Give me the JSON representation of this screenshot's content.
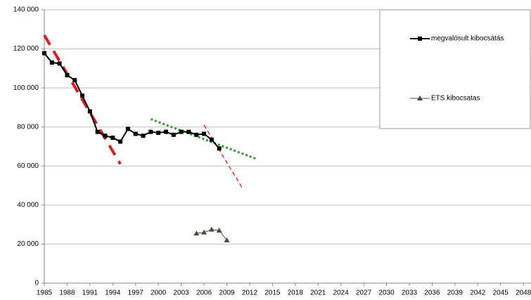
{
  "chart_data": {
    "type": "line",
    "xlim": [
      1985,
      2049
    ],
    "xticks": [
      1985,
      1988,
      1991,
      1994,
      1997,
      2000,
      2003,
      2006,
      2009,
      2012,
      2015,
      2018,
      2021,
      2024,
      2027,
      2030,
      2033,
      2036,
      2039,
      2042,
      2045,
      2048
    ],
    "ylim": [
      0,
      140000
    ],
    "yticks": [
      0,
      {
        "value": 20000,
        "label": "20 000"
      },
      {
        "value": 40000,
        "label": "40 000"
      },
      {
        "value": 60000,
        "label": "60 000"
      },
      {
        "value": 80000,
        "label": "80 000"
      },
      {
        "value": 100000,
        "label": "100 000"
      },
      {
        "value": 120000,
        "label": "120 000"
      },
      {
        "value": 140000,
        "label": "140 000"
      }
    ],
    "grid": true,
    "legend": "upper right",
    "series": [
      {
        "name": "megvalósult kibocsátás",
        "color": "#000000",
        "marker": "square",
        "x": [
          1985,
          1986,
          1987,
          1988,
          1989,
          1990,
          1991,
          1992,
          1993,
          1994,
          1995,
          1996,
          1997,
          1998,
          1999,
          2000,
          2001,
          2002,
          2003,
          2004,
          2005,
          2006,
          2007,
          2008
        ],
        "values": [
          117800,
          113000,
          112500,
          106500,
          104000,
          96000,
          88000,
          77500,
          75500,
          74500,
          72500,
          79000,
          76500,
          75500,
          77500,
          77000,
          77500,
          76000,
          77500,
          77500,
          76000,
          76500,
          73500,
          69000
        ]
      },
      {
        "name": "ETS kibocsatas",
        "color": "#4a4a3a",
        "marker": "triangle",
        "x": [
          2005,
          2006,
          2007,
          2008,
          2009
        ],
        "values": [
          25500,
          26000,
          27500,
          27000,
          22000
        ]
      }
    ],
    "trendlines": [
      {
        "x": [
          1985,
          1995
        ],
        "values": [
          127000,
          61000
        ],
        "color": "#d42020",
        "style": "dashed",
        "width": 4
      },
      {
        "x": [
          1999,
          2013
        ],
        "values": [
          84000,
          63500
        ],
        "color": "#2e9a2e",
        "style": "dotted",
        "width": 3
      },
      {
        "x": [
          2006,
          2011
        ],
        "values": [
          81000,
          49000
        ],
        "color": "#e03030",
        "style": "dashed",
        "width": 1.5
      }
    ]
  }
}
